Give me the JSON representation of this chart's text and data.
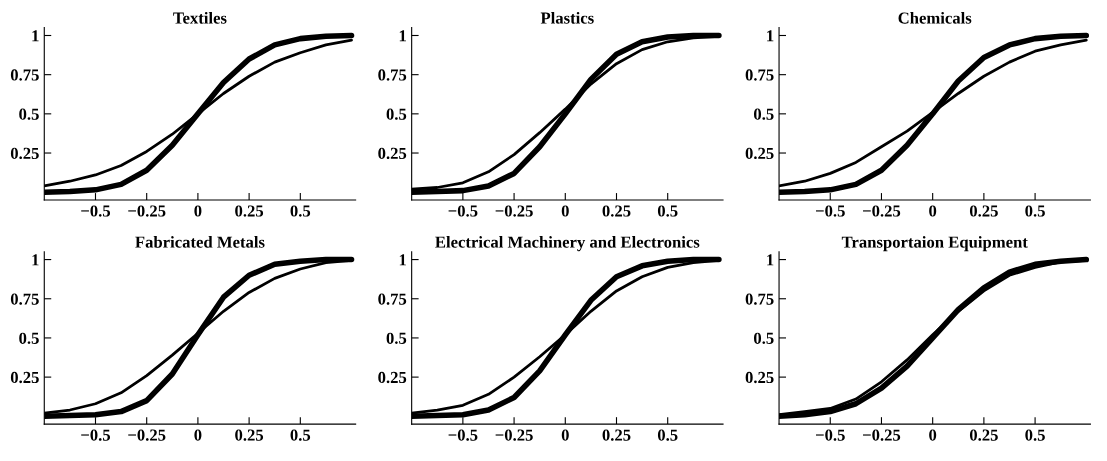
{
  "chart_data": [
    {
      "type": "line",
      "title": "Textiles",
      "x": [
        -0.75,
        -0.625,
        -0.5,
        -0.375,
        -0.25,
        -0.125,
        0,
        0.125,
        0.25,
        0.375,
        0.5,
        0.625,
        0.75
      ],
      "xlim": [
        -0.75,
        0.77
      ],
      "ylim": [
        -0.05,
        1.05
      ],
      "xticks": [
        -0.5,
        -0.25,
        0,
        0.25,
        0.5
      ],
      "yticks": [
        0.25,
        0.5,
        0.75,
        1
      ],
      "grid": false,
      "legend": false,
      "series": [
        {
          "color": "#000000",
          "values": [
            0.0,
            0.005,
            0.015,
            0.05,
            0.14,
            0.3,
            0.5,
            0.7,
            0.85,
            0.94,
            0.98,
            0.995,
            1.0
          ]
        },
        {
          "color": "#000000",
          "values": [
            0.04,
            0.07,
            0.11,
            0.17,
            0.26,
            0.37,
            0.5,
            0.63,
            0.74,
            0.83,
            0.89,
            0.94,
            0.97
          ]
        }
      ]
    },
    {
      "type": "line",
      "title": "Plastics",
      "x": [
        -0.75,
        -0.625,
        -0.5,
        -0.375,
        -0.25,
        -0.125,
        0,
        0.125,
        0.25,
        0.375,
        0.5,
        0.625,
        0.75
      ],
      "xlim": [
        -0.75,
        0.77
      ],
      "ylim": [
        -0.05,
        1.05
      ],
      "xticks": [
        -0.5,
        -0.25,
        0,
        0.25,
        0.5
      ],
      "yticks": [
        0.25,
        0.5,
        0.75,
        1
      ],
      "grid": false,
      "legend": false,
      "series": [
        {
          "color": "#000000",
          "values": [
            0.0,
            0.005,
            0.01,
            0.04,
            0.12,
            0.29,
            0.5,
            0.72,
            0.88,
            0.96,
            0.99,
            1.0,
            1.0
          ]
        },
        {
          "color": "#000000",
          "values": [
            0.02,
            0.03,
            0.06,
            0.13,
            0.24,
            0.38,
            0.53,
            0.69,
            0.82,
            0.91,
            0.96,
            0.985,
            0.995
          ]
        }
      ]
    },
    {
      "type": "line",
      "title": "Chemicals",
      "x": [
        -0.75,
        -0.625,
        -0.5,
        -0.375,
        -0.25,
        -0.125,
        0,
        0.125,
        0.25,
        0.375,
        0.5,
        0.625,
        0.75
      ],
      "xlim": [
        -0.75,
        0.77
      ],
      "ylim": [
        -0.05,
        1.05
      ],
      "xticks": [
        -0.5,
        -0.25,
        0,
        0.25,
        0.5
      ],
      "yticks": [
        0.25,
        0.5,
        0.75,
        1
      ],
      "grid": false,
      "legend": false,
      "series": [
        {
          "color": "#000000",
          "values": [
            0.0,
            0.005,
            0.015,
            0.05,
            0.14,
            0.3,
            0.5,
            0.71,
            0.86,
            0.94,
            0.98,
            0.995,
            1.0
          ]
        },
        {
          "color": "#000000",
          "values": [
            0.04,
            0.07,
            0.12,
            0.19,
            0.29,
            0.39,
            0.51,
            0.63,
            0.74,
            0.83,
            0.9,
            0.94,
            0.97
          ]
        }
      ]
    },
    {
      "type": "line",
      "title": "Fabricated Metals",
      "x": [
        -0.75,
        -0.625,
        -0.5,
        -0.375,
        -0.25,
        -0.125,
        0,
        0.125,
        0.25,
        0.375,
        0.5,
        0.625,
        0.75
      ],
      "xlim": [
        -0.75,
        0.77
      ],
      "ylim": [
        -0.05,
        1.05
      ],
      "xticks": [
        -0.5,
        -0.25,
        0,
        0.25,
        0.5
      ],
      "yticks": [
        0.25,
        0.5,
        0.75,
        1
      ],
      "grid": false,
      "legend": false,
      "series": [
        {
          "color": "#000000",
          "values": [
            0.0,
            0.005,
            0.01,
            0.03,
            0.1,
            0.27,
            0.52,
            0.76,
            0.9,
            0.97,
            0.99,
            1.0,
            1.0
          ]
        },
        {
          "color": "#000000",
          "values": [
            0.02,
            0.04,
            0.08,
            0.15,
            0.26,
            0.39,
            0.53,
            0.67,
            0.79,
            0.88,
            0.94,
            0.98,
            0.995
          ]
        }
      ]
    },
    {
      "type": "line",
      "title": "Electrical Machinery and Electronics",
      "x": [
        -0.75,
        -0.625,
        -0.5,
        -0.375,
        -0.25,
        -0.125,
        0,
        0.125,
        0.25,
        0.375,
        0.5,
        0.625,
        0.75
      ],
      "xlim": [
        -0.75,
        0.77
      ],
      "ylim": [
        -0.05,
        1.05
      ],
      "xticks": [
        -0.5,
        -0.25,
        0,
        0.25,
        0.5
      ],
      "yticks": [
        0.25,
        0.5,
        0.75,
        1
      ],
      "grid": false,
      "legend": false,
      "series": [
        {
          "color": "#000000",
          "values": [
            0.0,
            0.005,
            0.01,
            0.04,
            0.12,
            0.29,
            0.52,
            0.74,
            0.89,
            0.96,
            0.99,
            1.0,
            1.0
          ]
        },
        {
          "color": "#000000",
          "values": [
            0.02,
            0.04,
            0.07,
            0.14,
            0.25,
            0.38,
            0.52,
            0.67,
            0.8,
            0.89,
            0.95,
            0.98,
            0.995
          ]
        }
      ]
    },
    {
      "type": "line",
      "title": "Transportaion Equipment",
      "x": [
        -0.75,
        -0.625,
        -0.5,
        -0.375,
        -0.25,
        -0.125,
        0,
        0.125,
        0.25,
        0.375,
        0.5,
        0.625,
        0.75
      ],
      "xlim": [
        -0.75,
        0.77
      ],
      "ylim": [
        -0.05,
        1.05
      ],
      "xticks": [
        -0.5,
        -0.25,
        0,
        0.25,
        0.5
      ],
      "yticks": [
        0.25,
        0.5,
        0.75,
        1
      ],
      "grid": false,
      "legend": false,
      "series": [
        {
          "color": "#000000",
          "values": [
            0.0,
            0.01,
            0.03,
            0.08,
            0.18,
            0.32,
            0.5,
            0.68,
            0.82,
            0.92,
            0.97,
            0.99,
            1.0
          ]
        },
        {
          "color": "#000000",
          "values": [
            0.01,
            0.03,
            0.05,
            0.11,
            0.22,
            0.36,
            0.52,
            0.67,
            0.8,
            0.9,
            0.95,
            0.985,
            0.995
          ]
        }
      ]
    }
  ]
}
